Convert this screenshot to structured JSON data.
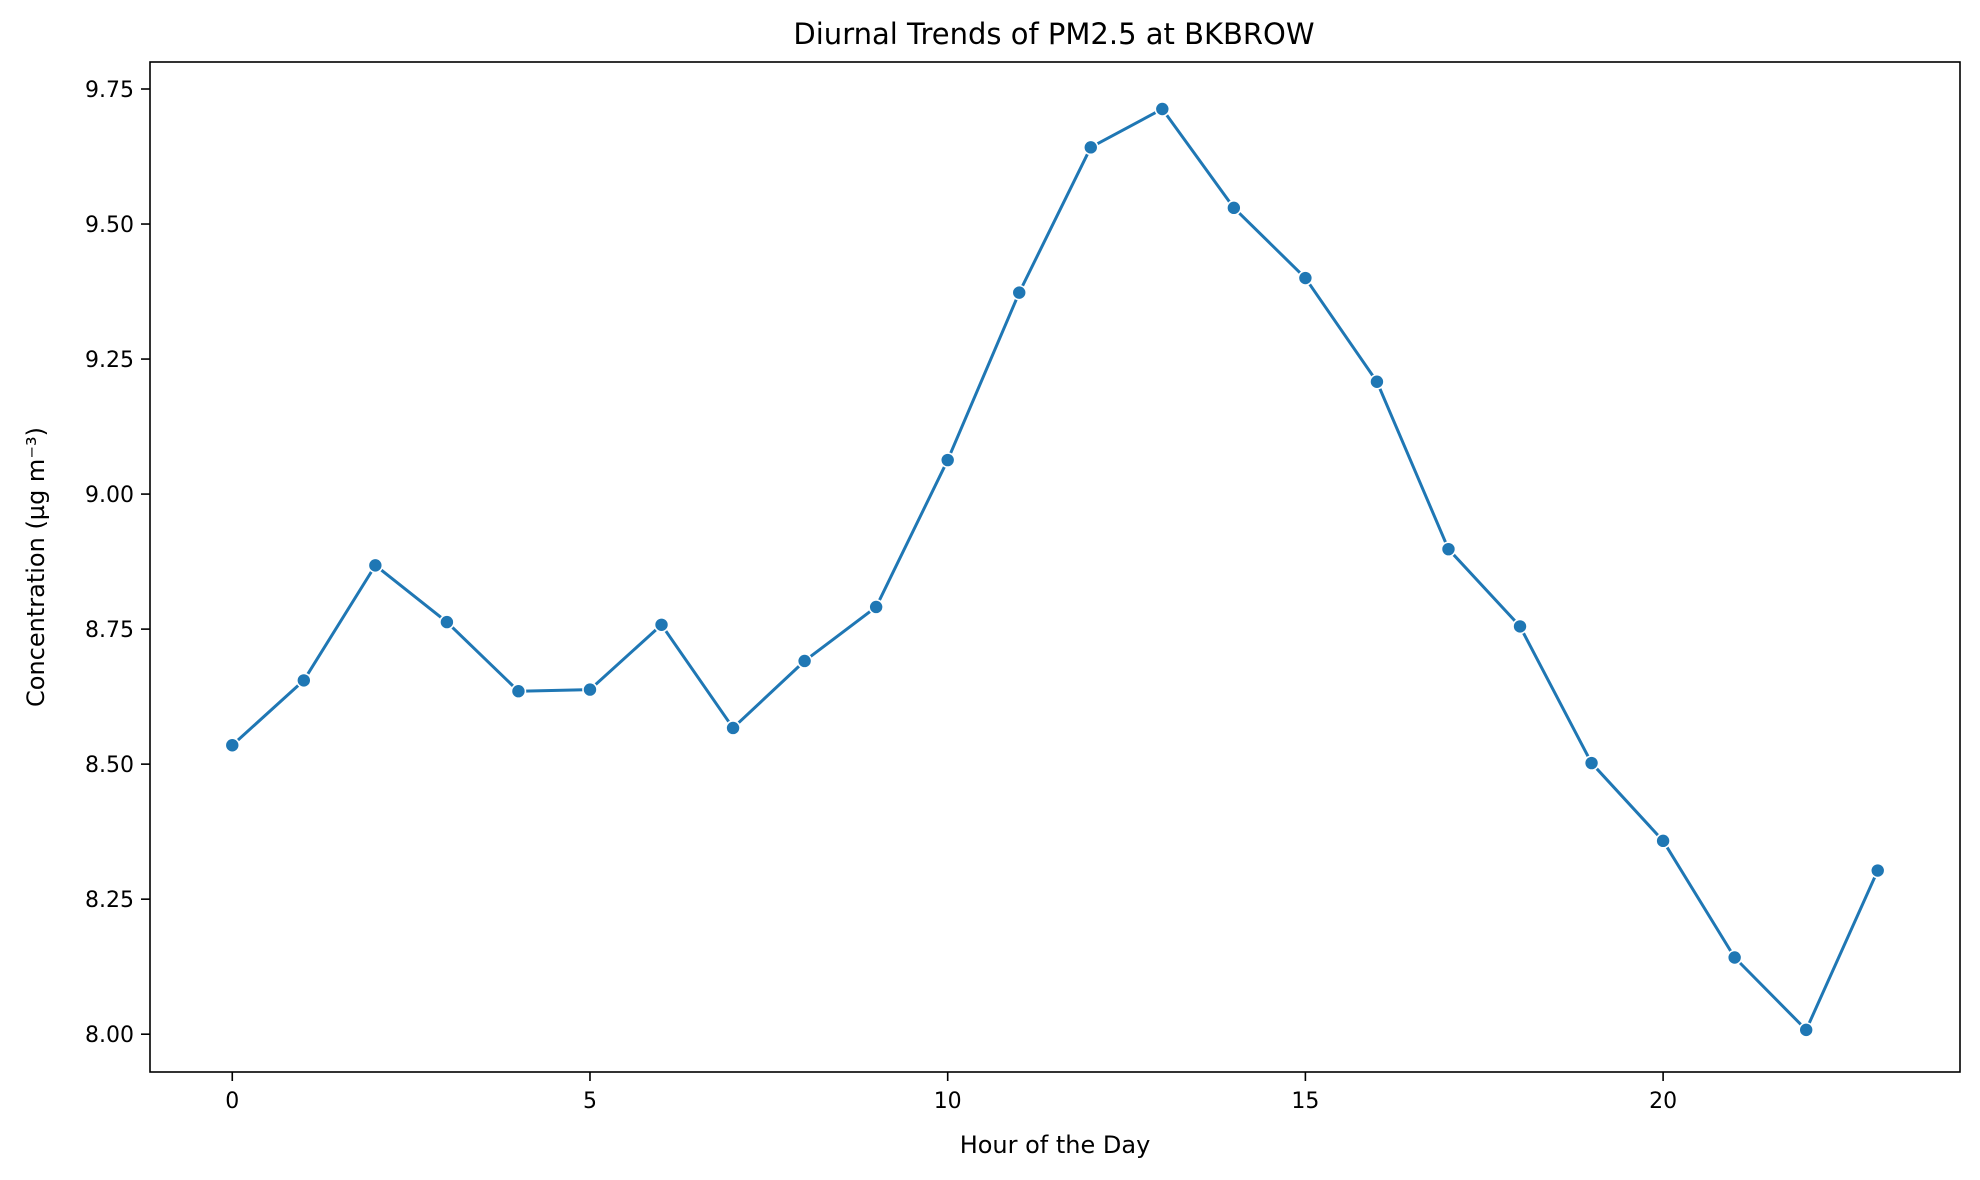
{
  "chart_data": {
    "type": "line",
    "title": "Diurnal Trends of PM2.5 at BKBROW",
    "xlabel": "Hour of the Day",
    "ylabel": "Concentration (µg m⁻³)",
    "xlim": [
      -1.15,
      24.15
    ],
    "ylim": [
      7.93,
      9.8
    ],
    "xticks": [
      0,
      5,
      10,
      15,
      20
    ],
    "xtick_labels": [
      "0",
      "5",
      "10",
      "15",
      "20"
    ],
    "yticks": [
      8.0,
      8.25,
      8.5,
      8.75,
      9.0,
      9.25,
      9.5,
      9.75
    ],
    "ytick_labels": [
      "8.00",
      "8.25",
      "8.50",
      "8.75",
      "9.00",
      "9.25",
      "9.50",
      "9.75"
    ],
    "grid": false,
    "legend": "none",
    "marker": "circle",
    "series": [
      {
        "color": "#1f77b4",
        "x": [
          0,
          1,
          2,
          3,
          4,
          5,
          6,
          7,
          8,
          9,
          10,
          11,
          12,
          13,
          14,
          15,
          16,
          17,
          18,
          19,
          20,
          21,
          22,
          23
        ],
        "values": [
          8.535,
          8.655,
          8.868,
          8.763,
          8.635,
          8.638,
          8.758,
          8.567,
          8.691,
          8.791,
          9.063,
          9.373,
          9.642,
          9.713,
          9.53,
          9.4,
          9.208,
          8.898,
          8.755,
          8.502,
          8.358,
          8.142,
          8.008,
          8.303
        ]
      }
    ]
  }
}
